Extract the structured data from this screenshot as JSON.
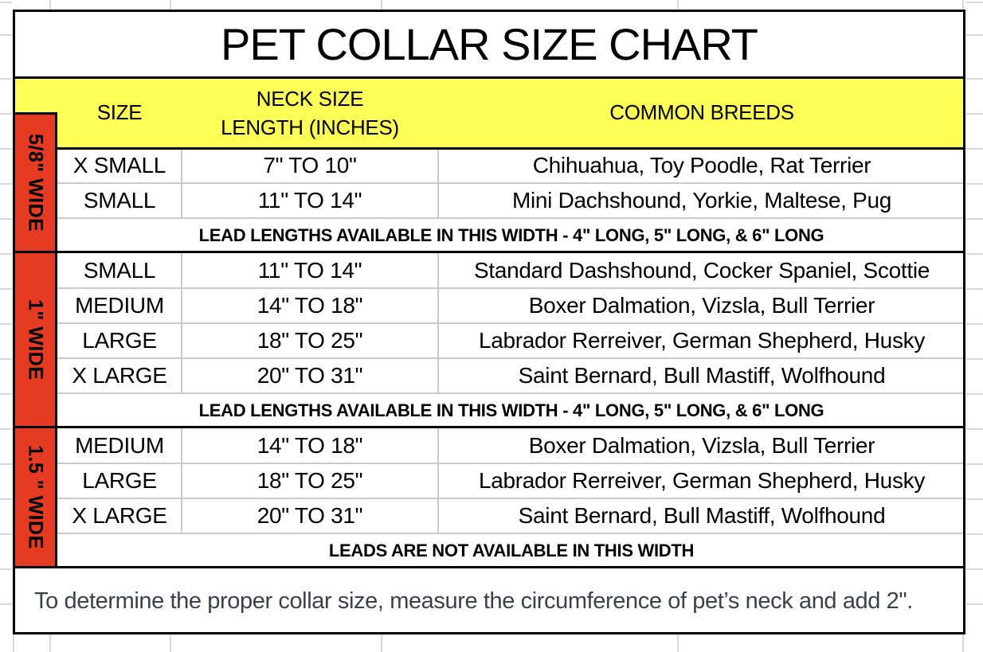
{
  "title": "PET COLLAR SIZE CHART",
  "header": {
    "size": "SIZE",
    "neck_line1": "NECK SIZE",
    "neck_line2": "LENGTH (INCHES)",
    "breeds": "COMMON BREEDS"
  },
  "sections": [
    {
      "width_label": "5/8\" WIDE",
      "rows": [
        {
          "size": "X SMALL",
          "neck": "7\" TO 10\"",
          "breeds": "Chihuahua, Toy Poodle, Rat Terrier"
        },
        {
          "size": "SMALL",
          "neck": "11\" TO 14\"",
          "breeds": "Mini Dachshound, Yorkie, Maltese, Pug"
        }
      ],
      "note": "LEAD LENGTHS AVAILABLE IN THIS WIDTH - 4\" LONG, 5\" LONG, & 6\" LONG"
    },
    {
      "width_label": "1\" WIDE",
      "rows": [
        {
          "size": "SMALL",
          "neck": "11\" TO 14\"",
          "breeds": "Standard Dashshound, Cocker Spaniel, Scottie"
        },
        {
          "size": "MEDIUM",
          "neck": "14\" TO 18\"",
          "breeds": "Boxer Dalmation, Vizsla, Bull Terrier"
        },
        {
          "size": "LARGE",
          "neck": "18\" TO 25\"",
          "breeds": "Labrador Rerreiver, German Shepherd, Husky"
        },
        {
          "size": "X LARGE",
          "neck": "20\" TO 31\"",
          "breeds": "Saint Bernard, Bull Mastiff, Wolfhound"
        }
      ],
      "note": "LEAD LENGTHS AVAILABLE IN THIS WIDTH  - 4\" LONG, 5\" LONG, & 6\" LONG"
    },
    {
      "width_label": "1.5 \" WIDE",
      "rows": [
        {
          "size": "MEDIUM",
          "neck": "14\" TO 18\"",
          "breeds": "Boxer Dalmation, Vizsla, Bull Terrier"
        },
        {
          "size": "LARGE",
          "neck": "18\" TO 25\"",
          "breeds": "Labrador Rerreiver, German Shepherd, Husky"
        },
        {
          "size": "X LARGE",
          "neck": "20\" TO 31\"",
          "breeds": "Saint Bernard, Bull Mastiff, Wolfhound"
        }
      ],
      "note": "LEADS ARE NOT AVAILABLE IN THIS WIDTH"
    }
  ],
  "footer_note": "To determine the proper collar size, measure the circumference of pet’s neck and add 2\".",
  "colors": {
    "header_bg": "#FDFF57",
    "band_bg": "#E53B22",
    "border": "#000000",
    "inner_gridline": "#C9C9C9",
    "sheet_gridline": "#D7D7D7",
    "footer_text": "#3A4149"
  }
}
